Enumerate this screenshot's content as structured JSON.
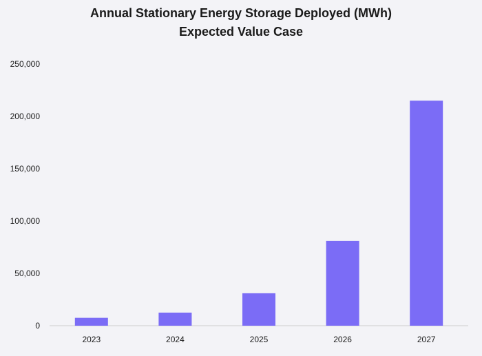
{
  "chart_data": {
    "type": "bar",
    "title": "Annual Stationary Energy Storage Deployed (MWh)",
    "subtitle": "Expected Value Case",
    "xlabel": "",
    "ylabel": "",
    "categories": [
      "2023",
      "2024",
      "2025",
      "2026",
      "2027"
    ],
    "values": [
      7500,
      12500,
      31000,
      81000,
      215000
    ],
    "ylim": [
      0,
      250000
    ],
    "yticks": [
      0,
      50000,
      100000,
      150000,
      200000,
      250000
    ],
    "ytick_labels": [
      "0",
      "50,000",
      "100,000",
      "150,000",
      "200,000",
      "250,000"
    ],
    "grid": false,
    "legend": "none"
  },
  "colors": {
    "bar": "#7b6cf6",
    "background": "#f3f3f7",
    "axis": "#cccccc"
  }
}
